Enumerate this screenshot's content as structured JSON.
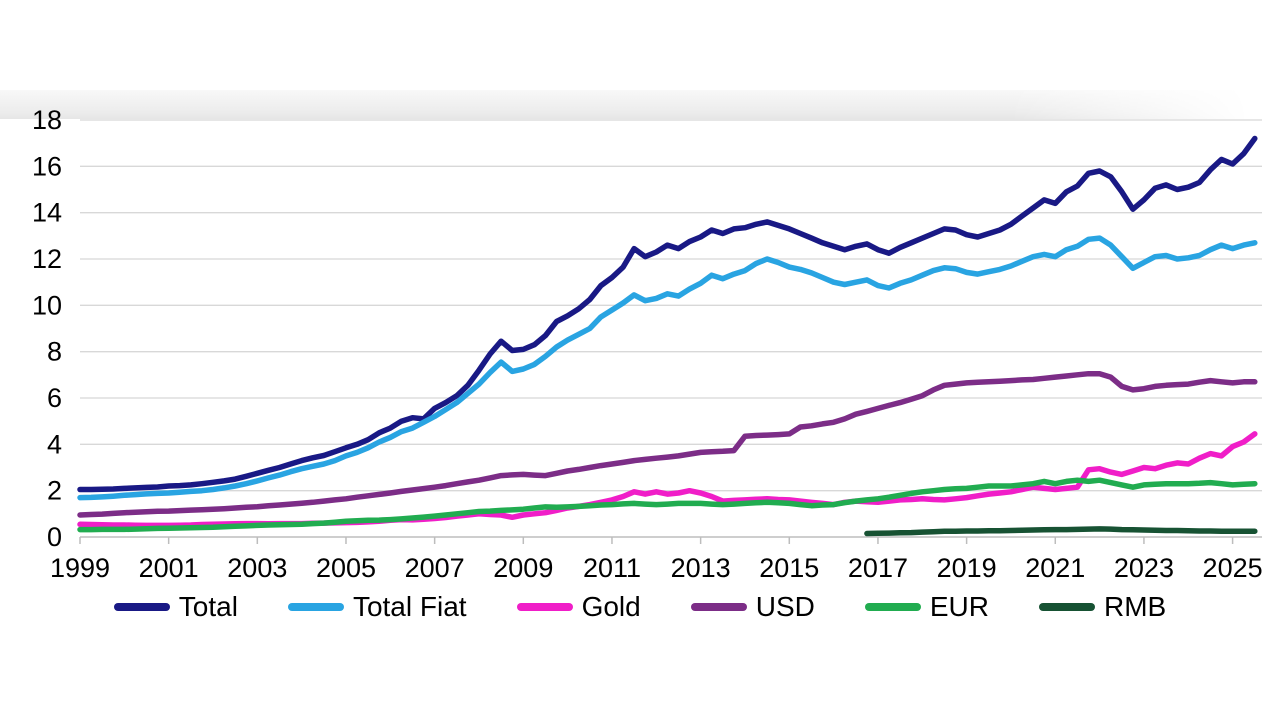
{
  "chart_data": {
    "type": "line",
    "title": "",
    "xlabel": "",
    "ylabel": "",
    "grid": true,
    "legend_position": "bottom",
    "x_axis": {
      "tick_labels": [
        "1999",
        "2001",
        "2003",
        "2005",
        "2007",
        "2009",
        "2011",
        "2013",
        "2015",
        "2017",
        "2019",
        "2021",
        "2023",
        "2025"
      ],
      "tick_years": [
        1999,
        2001,
        2003,
        2005,
        2007,
        2009,
        2011,
        2013,
        2015,
        2017,
        2019,
        2021,
        2023,
        2025
      ],
      "range": [
        1999,
        2025.6
      ]
    },
    "y_axis": {
      "tick_labels": [
        "0",
        "2",
        "4",
        "6",
        "8",
        "10",
        "12",
        "14",
        "16",
        "18"
      ],
      "tick_values": [
        0,
        2,
        4,
        6,
        8,
        10,
        12,
        14,
        16,
        18
      ],
      "range": [
        0,
        18
      ]
    },
    "sampling_note": "values sampled quarterly starting at start_year, step in years",
    "series": [
      {
        "name": "Total",
        "color": "#191985",
        "start_year": 1999.0,
        "step": 0.25,
        "values": [
          2.05,
          2.05,
          2.06,
          2.07,
          2.1,
          2.12,
          2.14,
          2.16,
          2.2,
          2.22,
          2.25,
          2.3,
          2.36,
          2.42,
          2.5,
          2.62,
          2.75,
          2.88,
          3.0,
          3.15,
          3.3,
          3.42,
          3.52,
          3.68,
          3.85,
          4.0,
          4.2,
          4.5,
          4.7,
          5.0,
          5.15,
          5.1,
          5.55,
          5.8,
          6.1,
          6.55,
          7.2,
          7.9,
          8.45,
          8.05,
          8.1,
          8.3,
          8.7,
          9.3,
          9.55,
          9.85,
          10.25,
          10.85,
          11.2,
          11.65,
          12.45,
          12.1,
          12.3,
          12.6,
          12.45,
          12.75,
          12.95,
          13.25,
          13.1,
          13.3,
          13.35,
          13.5,
          13.6,
          13.45,
          13.3,
          13.1,
          12.9,
          12.7,
          12.55,
          12.4,
          12.55,
          12.65,
          12.4,
          12.25,
          12.5,
          12.7,
          12.9,
          13.1,
          13.3,
          13.25,
          13.05,
          12.95,
          13.1,
          13.25,
          13.5,
          13.85,
          14.2,
          14.55,
          14.4,
          14.9,
          15.15,
          15.7,
          15.8,
          15.55,
          14.9,
          14.15,
          14.55,
          15.05,
          15.2,
          15.0,
          15.1,
          15.3,
          15.85,
          16.3,
          16.1,
          16.55,
          17.2
        ]
      },
      {
        "name": "Total Fiat",
        "color": "#29A4E2",
        "start_year": 1999.0,
        "step": 0.25,
        "values": [
          1.7,
          1.71,
          1.73,
          1.76,
          1.8,
          1.83,
          1.86,
          1.88,
          1.9,
          1.93,
          1.97,
          2.0,
          2.05,
          2.12,
          2.2,
          2.3,
          2.42,
          2.55,
          2.67,
          2.82,
          2.95,
          3.05,
          3.15,
          3.3,
          3.5,
          3.65,
          3.85,
          4.1,
          4.3,
          4.55,
          4.7,
          4.95,
          5.2,
          5.5,
          5.8,
          6.2,
          6.6,
          7.1,
          7.55,
          7.15,
          7.25,
          7.45,
          7.8,
          8.2,
          8.5,
          8.75,
          9.0,
          9.5,
          9.8,
          10.1,
          10.45,
          10.2,
          10.3,
          10.5,
          10.4,
          10.7,
          10.95,
          11.3,
          11.15,
          11.35,
          11.5,
          11.8,
          12.0,
          11.85,
          11.65,
          11.55,
          11.4,
          11.2,
          11.0,
          10.9,
          11.0,
          11.1,
          10.85,
          10.75,
          10.95,
          11.1,
          11.3,
          11.5,
          11.62,
          11.58,
          11.42,
          11.35,
          11.45,
          11.55,
          11.7,
          11.9,
          12.1,
          12.2,
          12.1,
          12.4,
          12.55,
          12.85,
          12.9,
          12.6,
          12.1,
          11.6,
          11.85,
          12.1,
          12.15,
          12.0,
          12.05,
          12.15,
          12.4,
          12.6,
          12.45,
          12.6,
          12.7
        ]
      },
      {
        "name": "Gold",
        "color": "#F01EC8",
        "start_year": 1999.0,
        "step": 0.25,
        "values": [
          0.55,
          0.54,
          0.53,
          0.52,
          0.52,
          0.51,
          0.5,
          0.5,
          0.5,
          0.51,
          0.52,
          0.54,
          0.55,
          0.56,
          0.57,
          0.58,
          0.58,
          0.57,
          0.58,
          0.58,
          0.58,
          0.59,
          0.6,
          0.61,
          0.62,
          0.63,
          0.65,
          0.68,
          0.72,
          0.75,
          0.74,
          0.77,
          0.8,
          0.84,
          0.9,
          0.95,
          1.0,
          0.97,
          0.95,
          0.85,
          0.95,
          1.0,
          1.05,
          1.15,
          1.25,
          1.32,
          1.4,
          1.5,
          1.6,
          1.75,
          1.95,
          1.85,
          1.95,
          1.85,
          1.9,
          2.0,
          1.9,
          1.75,
          1.55,
          1.58,
          1.6,
          1.63,
          1.65,
          1.62,
          1.6,
          1.55,
          1.5,
          1.45,
          1.4,
          1.5,
          1.55,
          1.52,
          1.5,
          1.55,
          1.6,
          1.62,
          1.65,
          1.62,
          1.6,
          1.65,
          1.7,
          1.78,
          1.85,
          1.9,
          1.95,
          2.05,
          2.15,
          2.1,
          2.05,
          2.1,
          2.15,
          2.9,
          2.95,
          2.8,
          2.7,
          2.85,
          3.0,
          2.95,
          3.1,
          3.2,
          3.15,
          3.4,
          3.6,
          3.5,
          3.9,
          4.1,
          4.45
        ]
      },
      {
        "name": "USD",
        "color": "#7C2D87",
        "start_year": 1999.0,
        "step": 0.25,
        "values": [
          0.95,
          0.97,
          0.99,
          1.02,
          1.05,
          1.07,
          1.09,
          1.11,
          1.12,
          1.14,
          1.16,
          1.18,
          1.2,
          1.22,
          1.25,
          1.28,
          1.31,
          1.35,
          1.38,
          1.42,
          1.46,
          1.5,
          1.55,
          1.6,
          1.65,
          1.72,
          1.78,
          1.84,
          1.9,
          1.97,
          2.03,
          2.09,
          2.15,
          2.22,
          2.3,
          2.38,
          2.45,
          2.55,
          2.65,
          2.68,
          2.7,
          2.67,
          2.65,
          2.75,
          2.85,
          2.92,
          3.0,
          3.08,
          3.15,
          3.22,
          3.3,
          3.35,
          3.4,
          3.45,
          3.5,
          3.58,
          3.65,
          3.68,
          3.7,
          3.73,
          4.35,
          4.38,
          4.4,
          4.42,
          4.45,
          4.75,
          4.8,
          4.88,
          4.95,
          5.1,
          5.3,
          5.42,
          5.55,
          5.68,
          5.8,
          5.95,
          6.1,
          6.35,
          6.55,
          6.6,
          6.65,
          6.68,
          6.7,
          6.72,
          6.75,
          6.78,
          6.8,
          6.85,
          6.9,
          6.95,
          7.0,
          7.05,
          7.05,
          6.9,
          6.5,
          6.35,
          6.4,
          6.5,
          6.55,
          6.58,
          6.6,
          6.68,
          6.75,
          6.7,
          6.65,
          6.7,
          6.7
        ]
      },
      {
        "name": "EUR",
        "color": "#21AC50",
        "start_year": 1999.0,
        "step": 0.25,
        "values": [
          0.32,
          0.32,
          0.33,
          0.33,
          0.33,
          0.34,
          0.36,
          0.37,
          0.38,
          0.39,
          0.4,
          0.41,
          0.42,
          0.44,
          0.46,
          0.48,
          0.5,
          0.52,
          0.53,
          0.54,
          0.55,
          0.58,
          0.6,
          0.64,
          0.68,
          0.7,
          0.72,
          0.73,
          0.75,
          0.78,
          0.82,
          0.86,
          0.9,
          0.95,
          1.0,
          1.05,
          1.1,
          1.12,
          1.15,
          1.17,
          1.2,
          1.25,
          1.3,
          1.28,
          1.3,
          1.32,
          1.35,
          1.38,
          1.4,
          1.43,
          1.45,
          1.42,
          1.4,
          1.42,
          1.45,
          1.45,
          1.45,
          1.42,
          1.4,
          1.42,
          1.45,
          1.48,
          1.5,
          1.48,
          1.45,
          1.4,
          1.35,
          1.38,
          1.4,
          1.48,
          1.55,
          1.6,
          1.65,
          1.72,
          1.8,
          1.88,
          1.95,
          2.0,
          2.05,
          2.08,
          2.1,
          2.15,
          2.2,
          2.2,
          2.2,
          2.25,
          2.3,
          2.4,
          2.3,
          2.4,
          2.45,
          2.4,
          2.45,
          2.35,
          2.25,
          2.15,
          2.25,
          2.28,
          2.3,
          2.3,
          2.3,
          2.32,
          2.35,
          2.3,
          2.25,
          2.28,
          2.3
        ]
      },
      {
        "name": "RMB",
        "color": "#175233",
        "start_year": 2016.75,
        "step": 0.25,
        "values": [
          0.15,
          0.16,
          0.17,
          0.18,
          0.19,
          0.21,
          0.23,
          0.25,
          0.25,
          0.26,
          0.26,
          0.27,
          0.27,
          0.28,
          0.29,
          0.3,
          0.31,
          0.32,
          0.32,
          0.33,
          0.34,
          0.35,
          0.34,
          0.32,
          0.31,
          0.3,
          0.29,
          0.28,
          0.28,
          0.27,
          0.26,
          0.26,
          0.25,
          0.25,
          0.25,
          0.25
        ]
      }
    ]
  },
  "colors": {
    "background": "#FFFFFF",
    "gridline": "#D8D8D8",
    "axis_line": "#BDBDBD",
    "tick_mark": "#BDBDBD",
    "tick_text": "#000000"
  }
}
